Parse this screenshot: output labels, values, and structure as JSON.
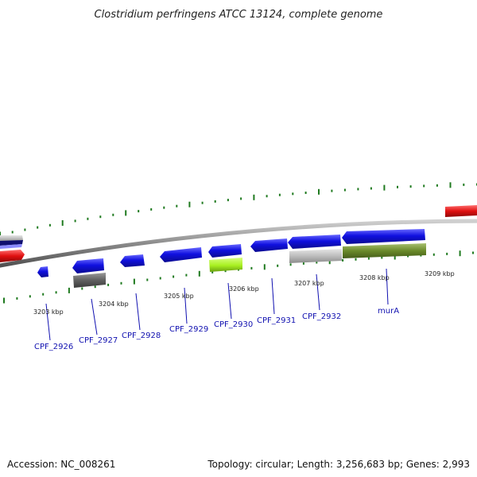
{
  "title": "Clostridium perfringens ATCC 13124, complete genome",
  "footer": {
    "accession": "Accession: NC_008261",
    "summary": "Topology: circular; Length: 3,256,683 bp; Genes: 2,993"
  },
  "colors": {
    "backbone": "#8a8a8a",
    "tick": "#1f7a1f",
    "label": "#1010b0",
    "cds_forward": "#1010e0",
    "cds_gray": "#c0c0c0",
    "cds_dark_gray": "#606060",
    "cds_lime": "#a8f020",
    "cds_olive": "#6a8a2a",
    "cds_red": "#e01010"
  },
  "scale_labels": [
    "3203 kbp",
    "3204 kbp",
    "3205 kbp",
    "3206 kbp",
    "3207 kbp",
    "3208 kbp",
    "3209 kbp"
  ],
  "gene_labels": [
    "CPF_2926",
    "CPF_2927",
    "CPF_2928",
    "CPF_2929",
    "CPF_2930",
    "CPF_2931",
    "CPF_2932",
    "murA"
  ]
}
